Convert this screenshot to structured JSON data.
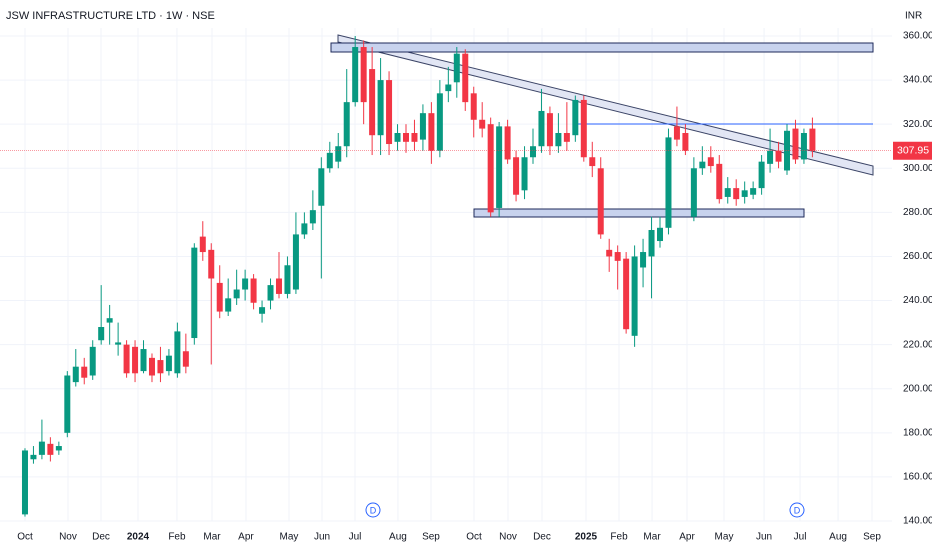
{
  "chart_data": {
    "type": "candlestick",
    "title": "JSW INFRASTRUCTURE LTD · 1W · NSE",
    "currency": "INR",
    "up_color": "#089981",
    "down_color": "#f23645",
    "open": [
      143,
      168,
      170,
      175,
      172,
      180,
      203,
      210,
      206,
      222,
      230,
      220,
      220,
      219,
      208,
      214,
      213,
      208,
      207,
      217,
      223,
      269,
      263,
      248,
      235,
      241,
      245,
      250,
      234,
      240,
      250,
      243,
      245,
      270,
      275,
      283,
      300,
      303,
      310,
      330,
      355,
      345,
      315,
      340,
      312,
      316,
      316,
      313,
      325,
      308,
      335,
      339,
      352,
      334,
      322,
      320,
      282,
      319,
      305,
      290,
      305,
      310,
      325,
      310,
      316,
      315,
      331,
      305,
      300,
      263,
      262,
      259,
      224,
      255,
      260,
      267,
      273,
      319,
      316,
      278,
      300,
      305,
      302,
      287,
      291,
      287,
      288,
      291,
      302,
      308,
      299,
      318,
      304,
      318
    ],
    "high": [
      173,
      174,
      186,
      178,
      176,
      208,
      218,
      214,
      222,
      247,
      238,
      230,
      222,
      222,
      222,
      216,
      219,
      218,
      230,
      225,
      266,
      276,
      266,
      256,
      250,
      254,
      254,
      252,
      240,
      250,
      262,
      260,
      280,
      280,
      290,
      305,
      312,
      316,
      345,
      360,
      358,
      355,
      350,
      344,
      320,
      320,
      322,
      329,
      330,
      340,
      346,
      355,
      354,
      337,
      330,
      323,
      321,
      322,
      308,
      310,
      318,
      336,
      328,
      325,
      330,
      333,
      333,
      312,
      305,
      268,
      265,
      262,
      265,
      268,
      278,
      278,
      318,
      328,
      320,
      305,
      310,
      310,
      306,
      296,
      295,
      294,
      294,
      306,
      318,
      312,
      320,
      322,
      318,
      323
    ],
    "low": [
      142,
      166,
      168,
      167,
      170,
      178,
      201,
      202,
      204,
      220,
      220,
      215,
      205,
      203,
      207,
      203,
      203,
      206,
      205,
      207,
      220,
      258,
      211,
      232,
      233,
      238,
      240,
      236,
      230,
      236,
      241,
      241,
      243,
      268,
      272,
      250,
      298,
      300,
      305,
      328,
      320,
      306,
      306,
      306,
      308,
      307,
      308,
      308,
      302,
      305,
      330,
      332,
      326,
      314,
      314,
      278,
      278,
      302,
      285,
      286,
      302,
      307,
      306,
      307,
      308,
      312,
      303,
      296,
      268,
      253,
      245,
      225,
      219,
      246,
      241,
      264,
      270,
      310,
      306,
      276,
      297,
      298,
      284,
      284,
      283,
      284,
      286,
      288,
      298,
      300,
      297,
      302,
      302,
      305
    ],
    "close": [
      172,
      170,
      176,
      170,
      174,
      206,
      210,
      205,
      219,
      228,
      232,
      221,
      207,
      207,
      218,
      206,
      207,
      215,
      226,
      210,
      264,
      262,
      250,
      235,
      241,
      245,
      250,
      239,
      237,
      247,
      243,
      256,
      270,
      275,
      281,
      300,
      307,
      310,
      330,
      355,
      330,
      315,
      340,
      311,
      316,
      312,
      312,
      325,
      308,
      334,
      338,
      352,
      330,
      322,
      318,
      280,
      319,
      304,
      288,
      305,
      310,
      326,
      310,
      316,
      312,
      331,
      305,
      301,
      270,
      260,
      258,
      227,
      260,
      262,
      272,
      273,
      314,
      313,
      308,
      300,
      303,
      301,
      286,
      291,
      286,
      290,
      291,
      303,
      308,
      303,
      317,
      304,
      316,
      307.95
    ],
    "xlim": [
      -2.95,
      102.4
    ],
    "ylim": [
      140,
      360
    ],
    "xticks": [
      {
        "value": 0,
        "label": "Oct"
      },
      {
        "value": 5.08,
        "label": "Nov"
      },
      {
        "value": 8.98,
        "label": "Dec"
      },
      {
        "value": 13.35,
        "label": "2024"
      },
      {
        "value": 17.95,
        "label": "Feb"
      },
      {
        "value": 22.09,
        "label": "Mar"
      },
      {
        "value": 26.1,
        "label": "Apr"
      },
      {
        "value": 31.18,
        "label": "May"
      },
      {
        "value": 35.08,
        "label": "Jun"
      },
      {
        "value": 38.98,
        "label": "Jul"
      },
      {
        "value": 44.05,
        "label": "Aug"
      },
      {
        "value": 47.95,
        "label": "Sep"
      },
      {
        "value": 53.03,
        "label": "Oct"
      },
      {
        "value": 57.05,
        "label": "Nov"
      },
      {
        "value": 61.06,
        "label": "Dec"
      },
      {
        "value": 66.26,
        "label": "2025"
      },
      {
        "value": 70.16,
        "label": "Feb"
      },
      {
        "value": 74.06,
        "label": "Mar"
      },
      {
        "value": 78.19,
        "label": "Apr"
      },
      {
        "value": 82.56,
        "label": "May"
      },
      {
        "value": 87.29,
        "label": "Jun"
      },
      {
        "value": 91.54,
        "label": "Jul"
      },
      {
        "value": 96.03,
        "label": "Aug"
      },
      {
        "value": 100.04,
        "label": "Sep"
      }
    ],
    "yticks": [
      {
        "value": 360,
        "label": "360.00"
      },
      {
        "value": 340,
        "label": "340.00"
      },
      {
        "value": 320,
        "label": "320.00"
      },
      {
        "value": 300,
        "label": "300.00"
      },
      {
        "value": 280,
        "label": "280.00"
      },
      {
        "value": 260,
        "label": "260.00"
      },
      {
        "value": 240,
        "label": "240.00"
      },
      {
        "value": 220,
        "label": "220.00"
      },
      {
        "value": 200,
        "label": "200.00"
      },
      {
        "value": 180,
        "label": "180.00"
      },
      {
        "value": 160,
        "label": "160.00"
      },
      {
        "value": 140,
        "label": "140.00"
      }
    ],
    "events": [
      "D",
      "D"
    ],
    "grid": true
  }
}
